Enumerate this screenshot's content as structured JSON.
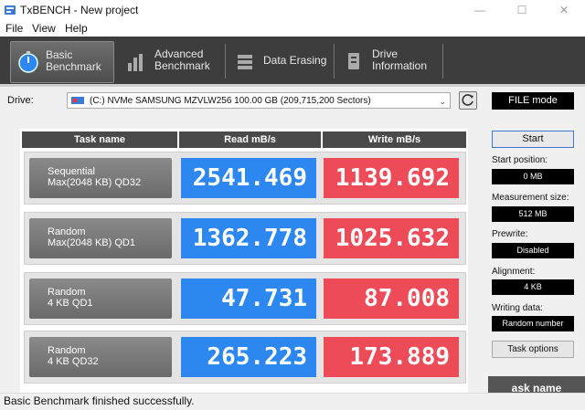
{
  "window": {
    "title": "TxBENCH - New project",
    "min": "—",
    "max": "☐",
    "close": "✕"
  },
  "menu": [
    {
      "label": "File"
    },
    {
      "label": "View"
    },
    {
      "label": "Help"
    }
  ],
  "nav_tabs": [
    {
      "label": "Basic\nBenchmark",
      "icon": "stopwatch-icon",
      "active": true
    },
    {
      "label": "Advanced\nBenchmark",
      "icon": "bar-chart-icon",
      "active": false
    },
    {
      "label": "Data Erasing",
      "icon": "eraser-icon",
      "active": false
    },
    {
      "label": "Drive\nInformation",
      "icon": "drive-info-icon",
      "active": false
    }
  ],
  "drive": {
    "label": "Drive:",
    "selected": "(C:) NVMe SAMSUNG MZVLW256  100.00 GB (209,715,200 Sectors)"
  },
  "file_mode": "FILE mode",
  "table": {
    "headers": {
      "task": "Task name",
      "read": "Read mB/s",
      "write": "Write mB/s"
    },
    "rows": [
      {
        "task": "Sequential\nMax(2048 KB) QD32",
        "read": "2541.469",
        "write": "1139.692"
      },
      {
        "task": "Random\nMax(2048 KB) QD1",
        "read": "1362.778",
        "write": "1025.632"
      },
      {
        "task": "Random\n4 KB QD1",
        "read": "47.731",
        "write": "87.008"
      },
      {
        "task": "Random\n4 KB QD32",
        "read": "265.223",
        "write": "173.889"
      }
    ]
  },
  "side": {
    "start": "Start",
    "start_position_label": "Start position:",
    "start_position": "0 MB",
    "measurement_size_label": "Measurement size:",
    "measurement_size": "512 MB",
    "prewrite_label": "Prewrite:",
    "prewrite": "Disabled",
    "alignment_label": "Alignment:",
    "alignment": "4 KB",
    "writing_data_label": "Writing data:",
    "writing_data": "Random number",
    "task_options": "Task options",
    "task_name_btn": "ask name"
  },
  "status": "Basic Benchmark finished successfully.",
  "colors": {
    "read": "#2d87f0",
    "write": "#ee4b58",
    "nav_bg": "#3d3d3d"
  }
}
